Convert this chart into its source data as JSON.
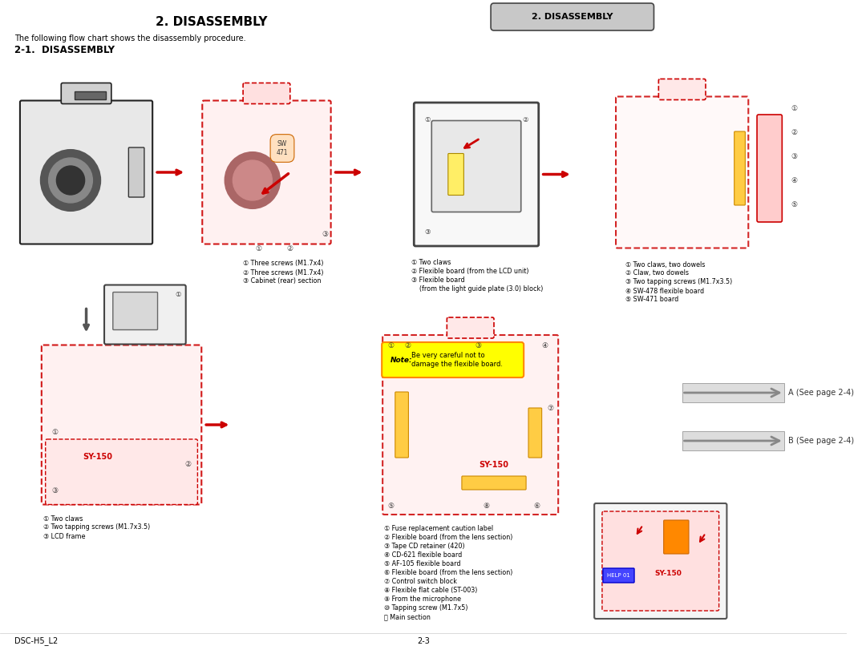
{
  "title_center": "2. DISASSEMBLY",
  "title_left": "2. DISASSEMBLY",
  "subtitle": "The following flow chart shows the disassembly procedure.",
  "section": "2-1.  DISASSEMBLY",
  "footer_left": "DSC-H5_L2",
  "footer_right": "2-3",
  "tab_label": "2. DISASSEMBLY",
  "bg_color": "#ffffff",
  "tab_bg": "#c8c8c8",
  "tab_border": "#000000",
  "note_text": "Note: Be very careful not to\ndamage the flexible board.",
  "note_bg": "#ffff00",
  "note_border": "#ff8800",
  "arrow_a_text": "A (See page 2-4)",
  "arrow_b_text": "B (See page 2-4)",
  "labels_top_left": [
    "① Three screws (M1.7x4)",
    "② Three screws (M1.7x4)",
    "③ Cabinet (rear) section"
  ],
  "labels_top_mid": [
    "① Two claws",
    "② Flexible board (from the LCD unit)",
    "③ Flexible board",
    "    (from the light guide plate (3.0) block)"
  ],
  "labels_top_right": [
    "① Two claws, two dowels",
    "② Claw, two dowels",
    "③ Two tapping screws (M1.7x3.5)",
    "④ SW-478 flexible board",
    "⑤ SW-471 board"
  ],
  "labels_bot_left": [
    "① Two claws",
    "② Two tapping screws (M1.7x3.5)",
    "③ LCD frame"
  ],
  "labels_bot_mid": [
    "① Fuse replacement caution label",
    "② Flexible board (from the lens section)",
    "③ Tape CD retainer (420)",
    "④ CD-621 flexible board",
    "⑤ AF-105 flexible board",
    "⑥ Flexible board (from the lens section)",
    "⑦ Control switch block",
    "⑧ Flexible flat cable (ST-003)",
    "⑨ From the microphone",
    "⑩ Tapping screw (M1.7x5)",
    "⑪ Main section"
  ],
  "camera_color_outline": "#cc0000",
  "camera_fill": "#ffeeee",
  "arrow_color": "#cc0000",
  "text_color": "#000000",
  "dim_color": "#333333"
}
